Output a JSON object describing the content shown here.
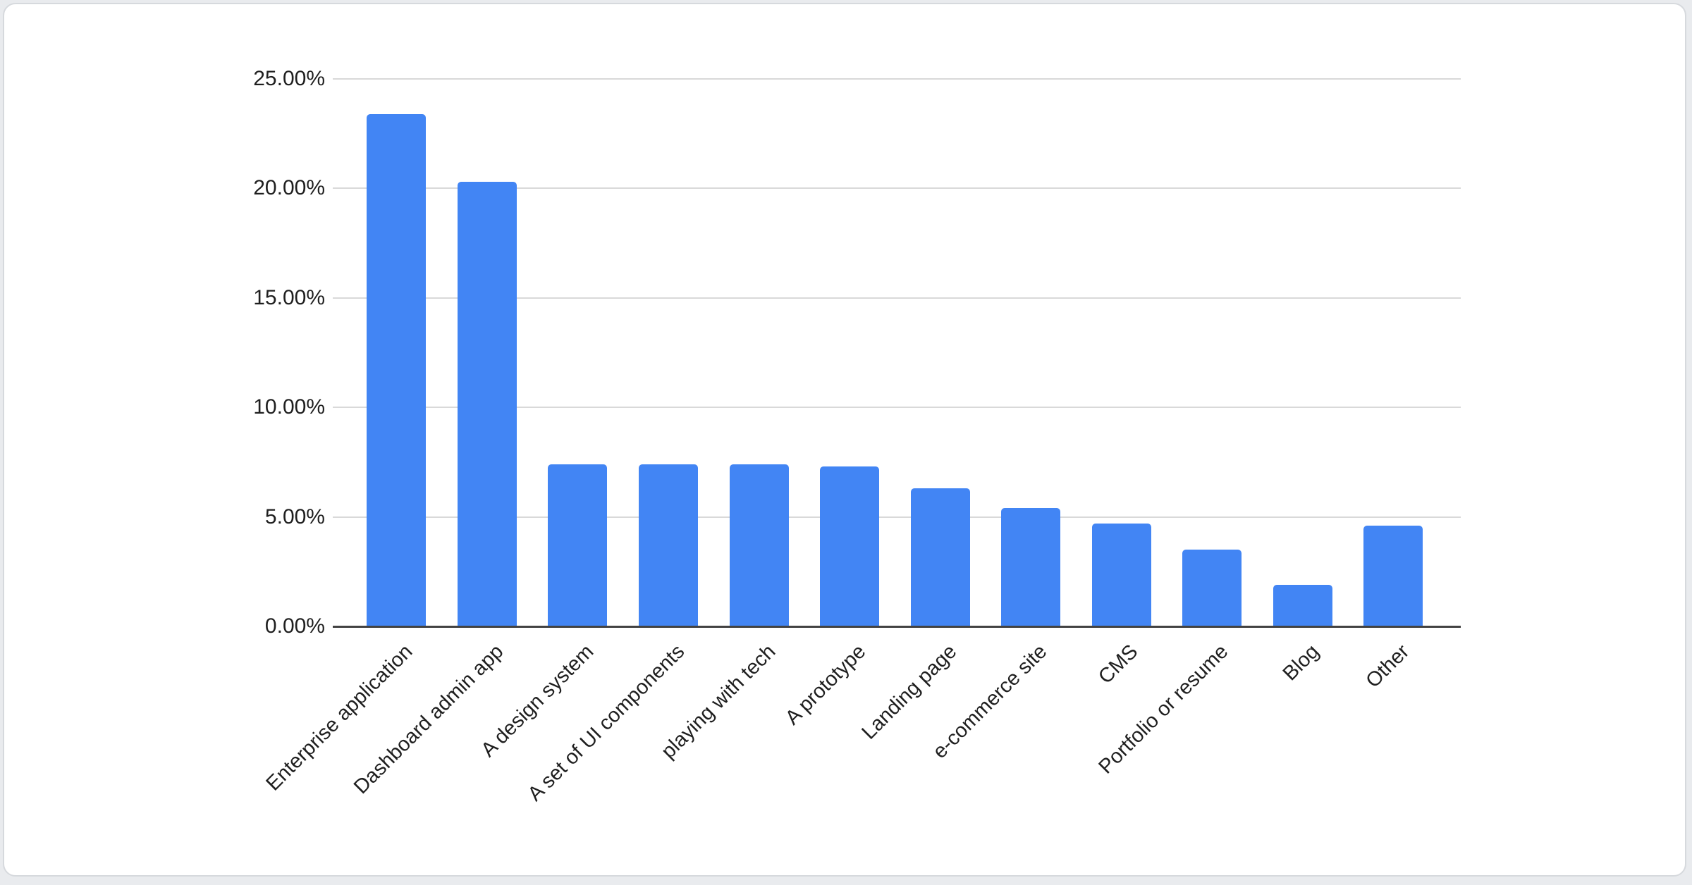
{
  "page": {
    "background_color": "#e9ebee",
    "card_background_color": "#ffffff",
    "card_border_color": "#d6d9dd"
  },
  "chart_data": {
    "type": "bar",
    "title": "",
    "xlabel": "",
    "ylabel": "",
    "categories": [
      "Enterprise application",
      "Dashboard admin app",
      "A design system",
      "A set of UI components",
      "playing with tech",
      "A prototype",
      "Landing page",
      "e-commerce site",
      "CMS",
      "Portfolio or resume",
      "Blog",
      "Other"
    ],
    "values": [
      23.4,
      20.3,
      7.4,
      7.4,
      7.4,
      7.3,
      6.3,
      5.4,
      4.7,
      3.5,
      1.9,
      4.6
    ],
    "value_unit": "%",
    "ylim": [
      0,
      25
    ],
    "y_tick_step": 5,
    "y_tick_labels": [
      "0.00%",
      "5.00%",
      "10.00%",
      "15.00%",
      "20.00%",
      "25.00%"
    ],
    "grid": true,
    "legend": "none",
    "bar_color": "#4285f4",
    "gridline_color": "#d9d9d9",
    "axis_line_color": "#424242",
    "tick_label_color": "#1f1f1f"
  }
}
